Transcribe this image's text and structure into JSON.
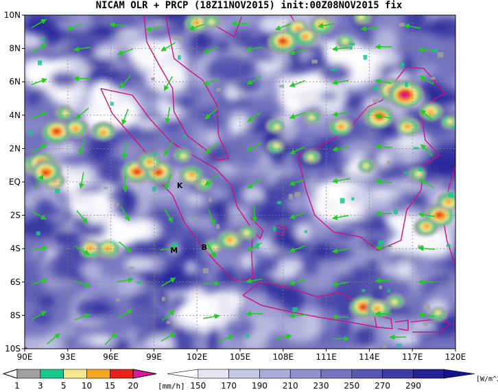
{
  "title": "NICAM OLR + PRCP (18Z11NOV2015) init:00Z08NOV2015 fix",
  "map": {
    "lon_ticks": [
      "90E",
      "93E",
      "96E",
      "99E",
      "102E",
      "105E",
      "108E",
      "111E",
      "114E",
      "117E",
      "120E"
    ],
    "lat_ticks": [
      "10N",
      "8N",
      "6N",
      "4N",
      "2N",
      "EQ",
      "2S",
      "4S",
      "6S",
      "8S",
      "10S"
    ],
    "lon_range": [
      90,
      120
    ],
    "lat_range": [
      -10,
      10
    ],
    "grid": true,
    "markers": [
      {
        "label": "K",
        "lon": 100.8,
        "lat": -0.2
      },
      {
        "label": "M",
        "lon": 100.4,
        "lat": -4.1
      },
      {
        "label": "B",
        "lon": 102.5,
        "lat": -3.9
      }
    ],
    "colors": {
      "coast": "#d0107c",
      "wind": "#22cc22",
      "grid": "#888888"
    }
  },
  "legend_prcp": {
    "levels": [
      "1",
      "3",
      "5",
      "10",
      "15",
      "20"
    ],
    "unit": "[mm/h]",
    "colors": [
      "#a0a0a0",
      "#16c88a",
      "#f4e68c",
      "#f5a623",
      "#e8221a",
      "#e0179a"
    ]
  },
  "legend_olr": {
    "levels": [
      "150",
      "170",
      "190",
      "210",
      "230",
      "250",
      "270",
      "290"
    ],
    "unit": "[W/m^2]",
    "colors": [
      "#ffffff",
      "#e4e4f2",
      "#c8c8e6",
      "#acacd9",
      "#9090cc",
      "#7474bf",
      "#5858b2",
      "#3c3ca6",
      "#222299",
      "#14148a"
    ]
  },
  "wind_arrows": [
    [
      91.0,
      9.5,
      30
    ],
    [
      93.5,
      9.3,
      200
    ],
    [
      96.5,
      9.4,
      175
    ],
    [
      99,
      9.2,
      190
    ],
    [
      102,
      9.3,
      200
    ],
    [
      105,
      9.5,
      180
    ],
    [
      108,
      9.3,
      200
    ],
    [
      111,
      9.4,
      190
    ],
    [
      114,
      9.2,
      185
    ],
    [
      117,
      9.3,
      170
    ],
    [
      91,
      8,
      30
    ],
    [
      94,
      8,
      190
    ],
    [
      97,
      7.8,
      200
    ],
    [
      100,
      8.1,
      210
    ],
    [
      103,
      7.9,
      200
    ],
    [
      106,
      8,
      190
    ],
    [
      109,
      7.8,
      195
    ],
    [
      112,
      8,
      185
    ],
    [
      115,
      8.1,
      180
    ],
    [
      118,
      7.9,
      175
    ],
    [
      91,
      6,
      20
    ],
    [
      94,
      6.2,
      180
    ],
    [
      97,
      6,
      230
    ],
    [
      100,
      5.9,
      240
    ],
    [
      103,
      6,
      200
    ],
    [
      106,
      6.1,
      210
    ],
    [
      109,
      5.9,
      200
    ],
    [
      112,
      6,
      190
    ],
    [
      115,
      6,
      170
    ],
    [
      118,
      6.1,
      150
    ],
    [
      91,
      4,
      20
    ],
    [
      94,
      4.1,
      220
    ],
    [
      97,
      3.9,
      250
    ],
    [
      100,
      4,
      260
    ],
    [
      103,
      4.1,
      220
    ],
    [
      106,
      3.9,
      215
    ],
    [
      109,
      4,
      200
    ],
    [
      112,
      4.1,
      190
    ],
    [
      115,
      3.9,
      170
    ],
    [
      118,
      4,
      140
    ],
    [
      91,
      2,
      30
    ],
    [
      94,
      2.1,
      250
    ],
    [
      97,
      1.9,
      260
    ],
    [
      100,
      2,
      240
    ],
    [
      103,
      2,
      220
    ],
    [
      106,
      2.1,
      210
    ],
    [
      109,
      1.9,
      205
    ],
    [
      112,
      2,
      190
    ],
    [
      115,
      2.1,
      175
    ],
    [
      118,
      1.9,
      135
    ],
    [
      91,
      0,
      60
    ],
    [
      94,
      0.1,
      260
    ],
    [
      97,
      -0.1,
      270
    ],
    [
      100,
      0,
      250
    ],
    [
      103,
      0.1,
      220
    ],
    [
      106,
      -0.1,
      215
    ],
    [
      109,
      0,
      200
    ],
    [
      112,
      0.1,
      190
    ],
    [
      115,
      0,
      175
    ],
    [
      118,
      -0.1,
      150
    ],
    [
      91,
      -2,
      330
    ],
    [
      94,
      -2.1,
      310
    ],
    [
      97,
      -1.9,
      300
    ],
    [
      100,
      -2,
      300
    ],
    [
      103,
      -2.1,
      290
    ],
    [
      106,
      -1.9,
      270
    ],
    [
      109,
      -2,
      200
    ],
    [
      112,
      -2.1,
      190
    ],
    [
      115,
      -1.9,
      180
    ],
    [
      118,
      -2,
      170
    ],
    [
      91,
      -4,
      10
    ],
    [
      94,
      -4.1,
      330
    ],
    [
      97,
      -3.9,
      320
    ],
    [
      100,
      -4,
      10
    ],
    [
      103,
      -4.1,
      300
    ],
    [
      106,
      -3.9,
      210
    ],
    [
      109,
      -4,
      200
    ],
    [
      112,
      -4.1,
      190
    ],
    [
      115,
      -3.9,
      185
    ],
    [
      118,
      -4,
      175
    ],
    [
      91,
      -6,
      20
    ],
    [
      94,
      -6.1,
      340
    ],
    [
      97,
      -5.9,
      10
    ],
    [
      100,
      -6,
      30
    ],
    [
      103,
      -6.1,
      0
    ],
    [
      106,
      -5.9,
      190
    ],
    [
      109,
      -6,
      195
    ],
    [
      112,
      -6.1,
      190
    ],
    [
      115,
      -5.9,
      185
    ],
    [
      118,
      -6,
      180
    ],
    [
      91,
      -8,
      30
    ],
    [
      94,
      -8.1,
      20
    ],
    [
      97,
      -7.9,
      30
    ],
    [
      100,
      -8,
      40
    ],
    [
      103,
      -8.1,
      10
    ],
    [
      106,
      -7.9,
      180
    ],
    [
      109,
      -8,
      185
    ],
    [
      112,
      -8.1,
      180
    ],
    [
      115,
      -7.9,
      180
    ],
    [
      118,
      -8,
      170
    ],
    [
      92,
      -9.4,
      40
    ],
    [
      96,
      -9.4,
      45
    ],
    [
      100,
      -9.3,
      30
    ],
    [
      104,
      -9.4,
      20
    ],
    [
      108,
      -9.3,
      10
    ],
    [
      112,
      -9.4,
      0
    ],
    [
      116,
      -9.3,
      180
    ]
  ],
  "precip_cells": [
    [
      90.6,
      1.0,
      3
    ],
    [
      91.2,
      1.1,
      4
    ],
    [
      92.0,
      0.1,
      3
    ],
    [
      91.5,
      0.6,
      4
    ],
    [
      92.2,
      3.0,
      4
    ],
    [
      93.6,
      3.2,
      3
    ],
    [
      92.8,
      4.1,
      2
    ],
    [
      95.5,
      3.0,
      3
    ],
    [
      97.8,
      0.6,
      4
    ],
    [
      99.3,
      0.6,
      4
    ],
    [
      98.7,
      1.2,
      3
    ],
    [
      101.6,
      0.4,
      3
    ],
    [
      102.5,
      -0.1,
      2
    ],
    [
      101.0,
      1.6,
      2
    ],
    [
      104.3,
      -3.5,
      3
    ],
    [
      105.5,
      -3.0,
      2
    ],
    [
      103.2,
      -3.9,
      2
    ],
    [
      94.6,
      -4.0,
      3
    ],
    [
      95.8,
      -4.0,
      3
    ],
    [
      102.0,
      9.5,
      3
    ],
    [
      103.0,
      9.6,
      2
    ],
    [
      109.0,
      9.2,
      3
    ],
    [
      110.7,
      9.4,
      3
    ],
    [
      108.0,
      8.4,
      4
    ],
    [
      109.6,
      8.7,
      3
    ],
    [
      112.3,
      8.4,
      2
    ],
    [
      113.5,
      9.9,
      2
    ],
    [
      115.6,
      5.5,
      4
    ],
    [
      116.5,
      5.2,
      5
    ],
    [
      114.7,
      3.9,
      4
    ],
    [
      116.7,
      3.3,
      3
    ],
    [
      118.3,
      4.2,
      3
    ],
    [
      119.6,
      3.6,
      2
    ],
    [
      112.0,
      3.3,
      3
    ],
    [
      110.0,
      3.9,
      2
    ],
    [
      107.5,
      3.3,
      2
    ],
    [
      107.5,
      2.1,
      2
    ],
    [
      110.0,
      1.5,
      2
    ],
    [
      113.8,
      1.0,
      2
    ],
    [
      117.4,
      0.5,
      2
    ],
    [
      118.9,
      -2.0,
      4
    ],
    [
      119.5,
      -1.2,
      3
    ],
    [
      118.0,
      -2.7,
      3
    ],
    [
      113.6,
      -7.5,
      4
    ],
    [
      114.6,
      -7.6,
      3
    ],
    [
      115.8,
      -7.2,
      2
    ],
    [
      118.8,
      -7.9,
      2
    ]
  ],
  "clear_zones": [
    [
      92.0,
      6.0,
      2.5,
      1.5
    ],
    [
      96.0,
      4.5,
      2.5,
      2.0
    ],
    [
      94.0,
      -0.5,
      3.5,
      2.5
    ],
    [
      97.0,
      -3.0,
      3.0,
      1.5
    ],
    [
      110.0,
      5.5,
      3.0,
      2.0
    ],
    [
      113.0,
      7.0,
      3.0,
      2.0
    ],
    [
      117.5,
      -3.0,
      2.5,
      2.0
    ],
    [
      103.0,
      -7.5,
      3.0,
      1.5
    ],
    [
      112.5,
      -1.0,
      2.5,
      1.5
    ],
    [
      99.5,
      7.0,
      2.0,
      2.0
    ]
  ]
}
